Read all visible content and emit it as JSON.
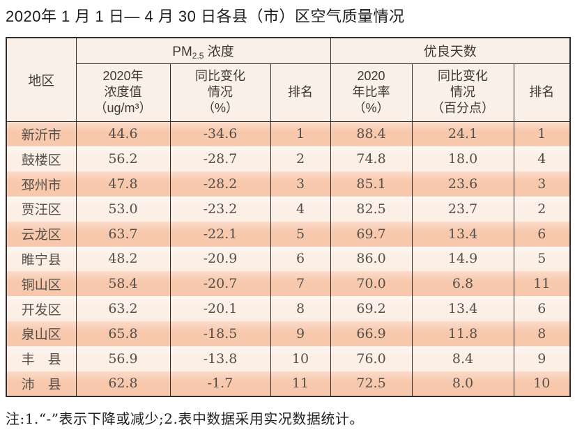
{
  "title": "2020年 1 月 1 日— 4 月 30 日各县（市）区空气质量情况",
  "table": {
    "header": {
      "region": "地区",
      "pm_group": {
        "prefix": "PM",
        "sub": "2.5",
        "suffix": " 浓度"
      },
      "good_days": "优良天数",
      "sub_headers": [
        "2020年\n浓度值\n（ug/m³）",
        "同比变化\n情况\n（%）",
        "排名",
        "2020\n年比率\n（%）",
        "同比变化\n情况\n（百分点）",
        "排名"
      ]
    },
    "rows": [
      [
        "新沂市",
        "44.6",
        "-34.6",
        "1",
        "88.4",
        "24.1",
        "1"
      ],
      [
        "鼓楼区",
        "56.2",
        "-28.7",
        "2",
        "74.8",
        "18.0",
        "4"
      ],
      [
        "邳州市",
        "47.8",
        "-28.2",
        "3",
        "85.1",
        "23.6",
        "3"
      ],
      [
        "贾汪区",
        "53.0",
        "-23.2",
        "4",
        "82.5",
        "23.7",
        "2"
      ],
      [
        "云龙区",
        "63.7",
        "-22.1",
        "5",
        "69.7",
        "13.4",
        "6"
      ],
      [
        "睢宁县",
        "48.2",
        "-20.9",
        "6",
        "86.0",
        "14.9",
        "5"
      ],
      [
        "铜山区",
        "58.4",
        "-20.7",
        "7",
        "70.0",
        "6.8",
        "11"
      ],
      [
        "开发区",
        "63.2",
        "-20.1",
        "8",
        "69.2",
        "13.4",
        "6"
      ],
      [
        "泉山区",
        "65.8",
        "-18.5",
        "9",
        "66.9",
        "11.8",
        "8"
      ],
      [
        "丰　县",
        "56.9",
        "-13.8",
        "10",
        "76.0",
        "8.4",
        "9"
      ],
      [
        "沛　县",
        "62.8",
        "-1.7",
        "11",
        "72.5",
        "8.0",
        "10"
      ]
    ]
  },
  "note": "注:1.“-”表示下降或减少;2.表中数据采用实况数据统计。",
  "colors": {
    "row_odd": "#f8c8ac",
    "row_even": "#fcefe6",
    "header_bg": "#fbf0e8",
    "border": "#2e2d2c",
    "body_text": "#55504b",
    "title_text": "#1d1d1d"
  }
}
